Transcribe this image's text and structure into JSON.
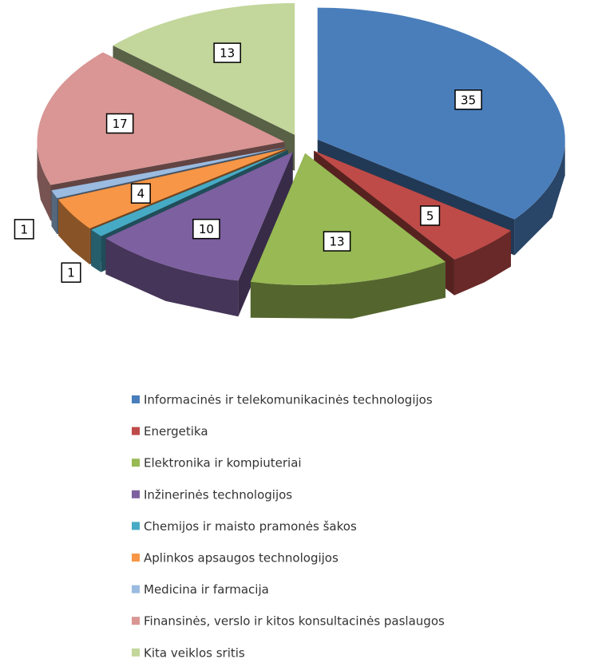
{
  "chart_data": {
    "type": "pie",
    "categories": [
      "Informacinės ir telekomunikacinės technologijos",
      "Energetika",
      "Elektronika ir kompiuteriai",
      "Inžinerinės technologijos",
      "Chemijos ir maisto pramonės šakos",
      "Aplinkos apsaugos technologijos",
      "Medicina ir farmacija",
      "Finansinės, verslo ir kitos konsultacinės paslaugos",
      "Kita veiklos sritis"
    ],
    "values": [
      35,
      5,
      13,
      10,
      1,
      4,
      1,
      17,
      13
    ],
    "colors": [
      "#4a7ebb",
      "#be4b48",
      "#98b954",
      "#7d60a0",
      "#46aac5",
      "#f79646",
      "#9bbbe0",
      "#d99694",
      "#c3d69b"
    ],
    "legend": "bottom"
  }
}
